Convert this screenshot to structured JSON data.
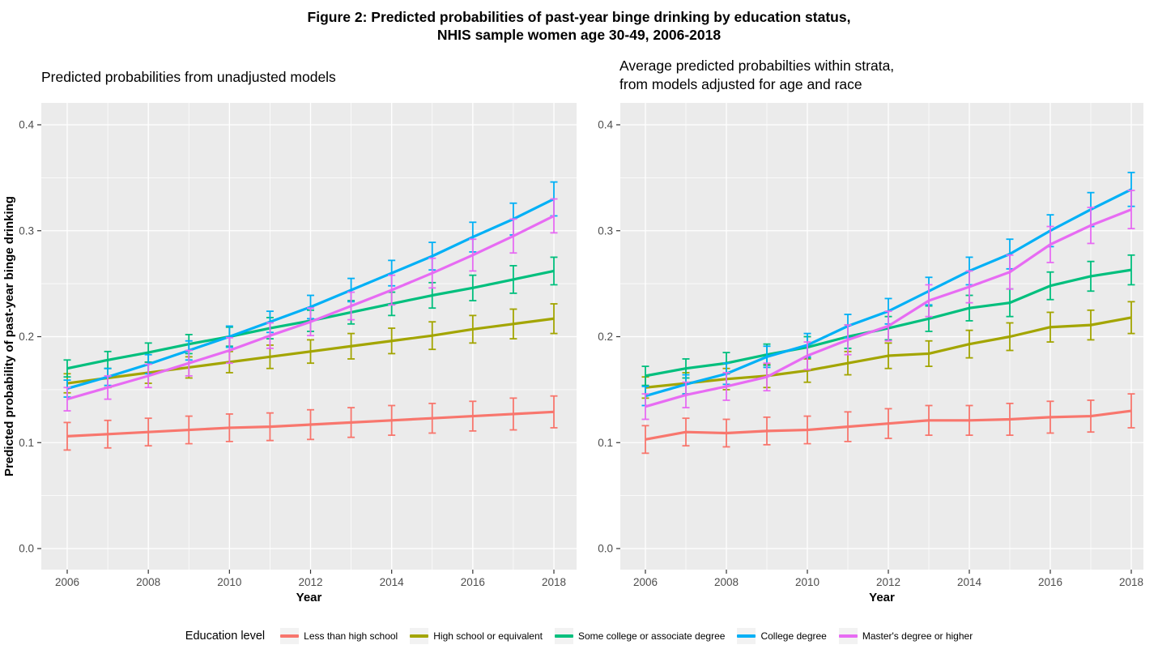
{
  "title": "Figure 2: Predicted probabilities of past-year binge drinking by education status,\nNHIS sample women age 30-49, 2006-2018",
  "y_axis_title": "Predicted probability of past-year binge drinking",
  "legend": {
    "title": "Education level",
    "items": [
      {
        "label": "Less than high school",
        "color": "#F8766D"
      },
      {
        "label": "High school or equivalent",
        "color": "#A3A500"
      },
      {
        "label": "Some college or associate degree",
        "color": "#00BF7D"
      },
      {
        "label": "College degree",
        "color": "#00B0F6"
      },
      {
        "label": "Master's degree or higher",
        "color": "#E76BF3"
      }
    ]
  },
  "colors": {
    "panel_background": "#EBEBEB",
    "gridline": "#FFFFFF",
    "tick_text": "#4D4D4D",
    "tick_mark": "#333333"
  },
  "chart_data": [
    {
      "type": "line",
      "title": "Predicted probabilities from unadjusted models",
      "xlabel": "Year",
      "ylabel": "Predicted probability of past-year binge drinking",
      "x": [
        2006,
        2007,
        2008,
        2009,
        2010,
        2011,
        2012,
        2013,
        2014,
        2015,
        2016,
        2017,
        2018
      ],
      "x_tick_labels": [
        "2006",
        "2008",
        "2010",
        "2012",
        "2014",
        "2016",
        "2018"
      ],
      "y_tick_labels": [
        "0.0",
        "0.1",
        "0.2",
        "0.3",
        "0.4"
      ],
      "y_ticks": [
        0.0,
        0.1,
        0.2,
        0.3,
        0.4
      ],
      "ylim": [
        -0.02,
        0.441
      ],
      "grid": true,
      "legend_position": "bottom-shared",
      "series": [
        {
          "name": "Less than high school",
          "color": "#F8766D",
          "values": [
            0.106,
            0.108,
            0.11,
            0.112,
            0.114,
            0.115,
            0.117,
            0.119,
            0.121,
            0.123,
            0.125,
            0.127,
            0.129
          ],
          "ci_halfwidth": [
            0.013,
            0.013,
            0.013,
            0.013,
            0.013,
            0.013,
            0.014,
            0.014,
            0.014,
            0.014,
            0.014,
            0.015,
            0.015
          ]
        },
        {
          "name": "High school or equivalent",
          "color": "#A3A500",
          "values": [
            0.156,
            0.161,
            0.166,
            0.171,
            0.176,
            0.181,
            0.186,
            0.191,
            0.196,
            0.201,
            0.207,
            0.212,
            0.217
          ],
          "ci_halfwidth": [
            0.009,
            0.009,
            0.01,
            0.01,
            0.01,
            0.011,
            0.011,
            0.012,
            0.012,
            0.013,
            0.013,
            0.014,
            0.014
          ]
        },
        {
          "name": "Some college or associate degree",
          "color": "#00BF7D",
          "values": [
            0.17,
            0.178,
            0.185,
            0.193,
            0.2,
            0.208,
            0.215,
            0.223,
            0.231,
            0.239,
            0.246,
            0.254,
            0.262
          ],
          "ci_halfwidth": [
            0.008,
            0.008,
            0.009,
            0.009,
            0.009,
            0.01,
            0.01,
            0.011,
            0.011,
            0.012,
            0.012,
            0.013,
            0.013
          ]
        },
        {
          "name": "College degree",
          "color": "#00B0F6",
          "values": [
            0.151,
            0.162,
            0.174,
            0.187,
            0.2,
            0.214,
            0.228,
            0.244,
            0.26,
            0.276,
            0.294,
            0.311,
            0.33
          ],
          "ci_halfwidth": [
            0.008,
            0.008,
            0.009,
            0.009,
            0.01,
            0.01,
            0.011,
            0.011,
            0.012,
            0.013,
            0.014,
            0.015,
            0.016
          ]
        },
        {
          "name": "Master's degree or higher",
          "color": "#E76BF3",
          "values": [
            0.141,
            0.152,
            0.163,
            0.175,
            0.187,
            0.201,
            0.214,
            0.229,
            0.244,
            0.26,
            0.277,
            0.295,
            0.314
          ],
          "ci_halfwidth": [
            0.011,
            0.011,
            0.011,
            0.012,
            0.012,
            0.012,
            0.013,
            0.013,
            0.014,
            0.014,
            0.015,
            0.016,
            0.016
          ]
        }
      ]
    },
    {
      "type": "line",
      "title": "Average predicted probabilties within strata,\nfrom models adjusted for age and race",
      "xlabel": "Year",
      "ylabel": "Predicted probability of past-year binge drinking",
      "x": [
        2006,
        2007,
        2008,
        2009,
        2010,
        2011,
        2012,
        2013,
        2014,
        2015,
        2016,
        2017,
        2018
      ],
      "x_tick_labels": [
        "2006",
        "2008",
        "2010",
        "2012",
        "2014",
        "2016",
        "2018"
      ],
      "y_tick_labels": [
        "0.0",
        "0.1",
        "0.2",
        "0.3",
        "0.4"
      ],
      "y_ticks": [
        0.0,
        0.1,
        0.2,
        0.3,
        0.4
      ],
      "ylim": [
        -0.02,
        0.441
      ],
      "grid": true,
      "legend_position": "bottom-shared",
      "series": [
        {
          "name": "Less than high school",
          "color": "#F8766D",
          "values": [
            0.103,
            0.11,
            0.109,
            0.111,
            0.112,
            0.115,
            0.118,
            0.121,
            0.121,
            0.122,
            0.124,
            0.125,
            0.13
          ],
          "ci_halfwidth": [
            0.013,
            0.013,
            0.013,
            0.013,
            0.013,
            0.014,
            0.014,
            0.014,
            0.014,
            0.015,
            0.015,
            0.015,
            0.016
          ]
        },
        {
          "name": "High school or equivalent",
          "color": "#A3A500",
          "values": [
            0.152,
            0.156,
            0.16,
            0.163,
            0.168,
            0.175,
            0.182,
            0.184,
            0.193,
            0.2,
            0.209,
            0.211,
            0.218
          ],
          "ci_halfwidth": [
            0.01,
            0.01,
            0.01,
            0.011,
            0.011,
            0.011,
            0.012,
            0.012,
            0.013,
            0.013,
            0.014,
            0.014,
            0.015
          ]
        },
        {
          "name": "Some college or associate degree",
          "color": "#00BF7D",
          "values": [
            0.163,
            0.17,
            0.175,
            0.183,
            0.19,
            0.2,
            0.208,
            0.217,
            0.227,
            0.232,
            0.248,
            0.257,
            0.263
          ],
          "ci_halfwidth": [
            0.009,
            0.009,
            0.01,
            0.01,
            0.01,
            0.011,
            0.011,
            0.012,
            0.012,
            0.013,
            0.013,
            0.014,
            0.014
          ]
        },
        {
          "name": "College degree",
          "color": "#00B0F6",
          "values": [
            0.144,
            0.155,
            0.165,
            0.181,
            0.192,
            0.21,
            0.224,
            0.243,
            0.262,
            0.278,
            0.3,
            0.32,
            0.339
          ],
          "ci_halfwidth": [
            0.009,
            0.009,
            0.01,
            0.01,
            0.011,
            0.011,
            0.012,
            0.013,
            0.013,
            0.014,
            0.015,
            0.016,
            0.016
          ]
        },
        {
          "name": "Master's degree or higher",
          "color": "#E76BF3",
          "values": [
            0.134,
            0.145,
            0.153,
            0.162,
            0.182,
            0.197,
            0.21,
            0.234,
            0.247,
            0.261,
            0.287,
            0.305,
            0.32
          ],
          "ci_halfwidth": [
            0.012,
            0.012,
            0.013,
            0.013,
            0.013,
            0.014,
            0.014,
            0.015,
            0.015,
            0.016,
            0.017,
            0.017,
            0.018
          ]
        }
      ]
    }
  ]
}
